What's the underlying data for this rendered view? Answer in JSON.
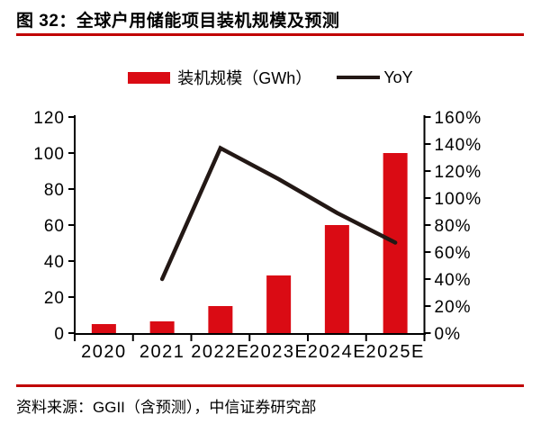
{
  "figure": {
    "title": "图 32：全球户用储能项目装机规模及预测",
    "source": "资料来源：GGII（含预测），中信证券研究部"
  },
  "legend": [
    {
      "label": "装机规模（GWh）",
      "swatch": "bar-swatch",
      "color": "#da0b14"
    },
    {
      "label": "YoY",
      "swatch": "line-swatch",
      "color": "#231815"
    }
  ],
  "colors": {
    "bar": "#da0b14",
    "line": "#231815",
    "rule": "#c00000",
    "axis": "#000000",
    "text": "#000000"
  },
  "chart_data": {
    "type": "bar",
    "subtype": "bar+line combo, dual axis",
    "categories": [
      "2020",
      "2021",
      "2022E",
      "2023E",
      "2024E",
      "2025E"
    ],
    "series": [
      {
        "name": "装机规模（GWh）",
        "type": "bar",
        "axis": "left",
        "color": "#da0b14",
        "values": [
          5,
          6.5,
          15,
          32,
          60,
          100
        ]
      },
      {
        "name": "YoY",
        "type": "line",
        "axis": "right",
        "unit": "%",
        "color": "#231815",
        "values": [
          null,
          40,
          137,
          114,
          89,
          67
        ]
      }
    ],
    "left_axis": {
      "min": 0,
      "max": 120,
      "step": 20,
      "ticks": [
        "0",
        "20",
        "40",
        "60",
        "80",
        "100",
        "120"
      ]
    },
    "right_axis": {
      "min": 0,
      "max": 160,
      "step": 20,
      "ticks": [
        "0%",
        "20%",
        "40%",
        "60%",
        "80%",
        "100%",
        "120%",
        "140%",
        "160%"
      ]
    },
    "grid": false,
    "legend_position": "top-center"
  }
}
